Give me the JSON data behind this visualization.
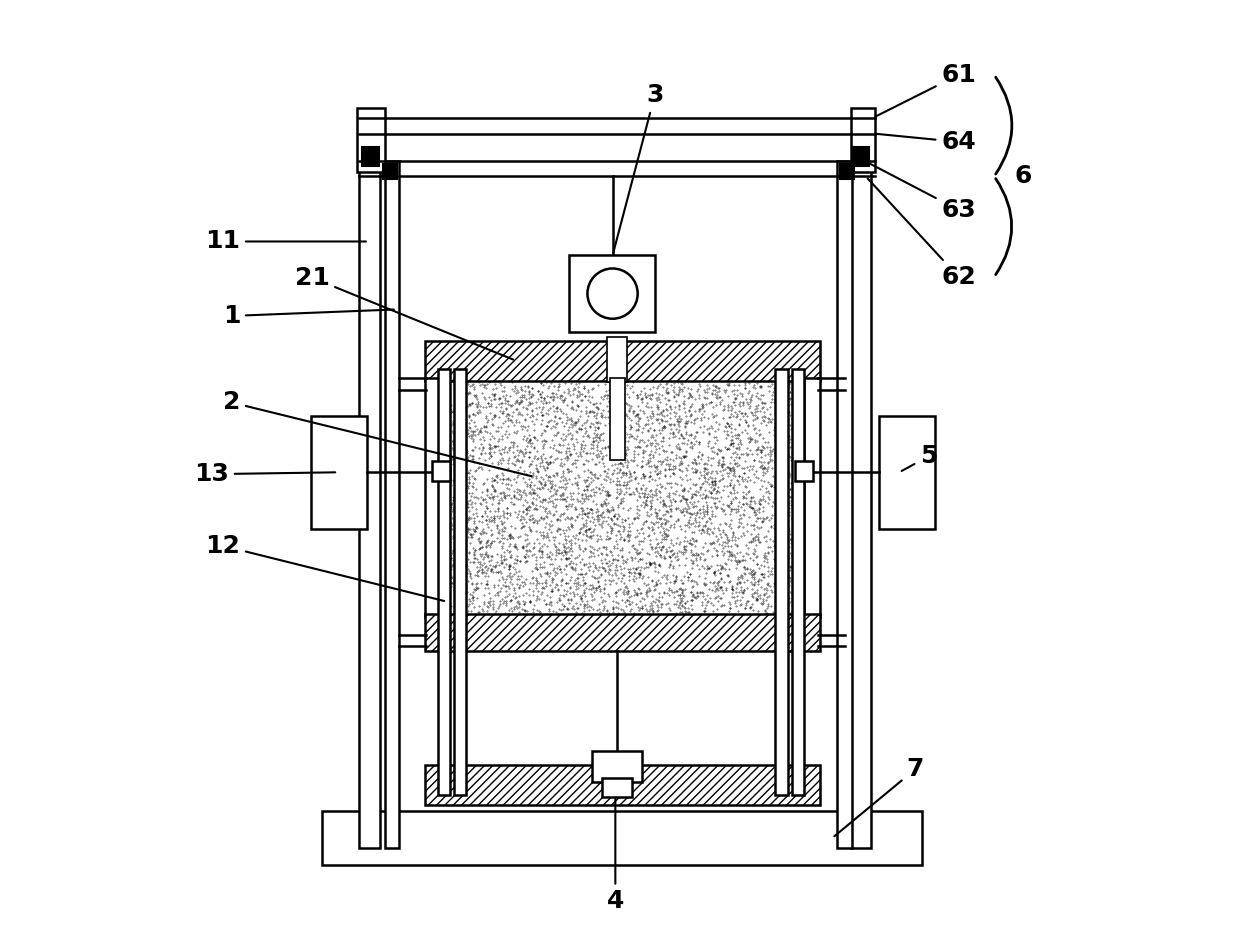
{
  "bg_color": "#ffffff",
  "line_color": "#000000",
  "label_fontsize": 18,
  "fig_width": 12.4,
  "fig_height": 9.39
}
